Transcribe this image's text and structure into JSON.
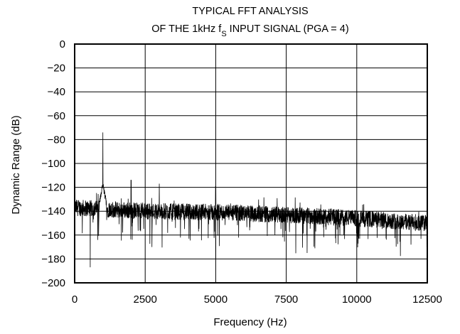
{
  "chart_data": {
    "type": "line",
    "title_line1": "TYPICAL FFT ANALYSIS",
    "title_line2_pre": "OF THE 1kHz f",
    "title_line2_sub": "S",
    "title_line2_post": " INPUT SIGNAL (PGA = 4)",
    "xlabel": "Frequency (Hz)",
    "ylabel": "Dynamic Range (dB)",
    "xlim": [
      0,
      12500
    ],
    "ylim": [
      -200,
      0
    ],
    "x_ticks": [
      0,
      2500,
      5000,
      7500,
      10000,
      12500
    ],
    "y_ticks": [
      0,
      -20,
      -40,
      -60,
      -80,
      -100,
      -120,
      -140,
      -160,
      -180,
      -200
    ],
    "x_tick_labels": [
      "0",
      "2500",
      "5000",
      "7500",
      "10000",
      "12500"
    ],
    "y_tick_labels": [
      "0",
      "−20",
      "−40",
      "−60",
      "−80",
      "−100",
      "−120",
      "−140",
      "−160",
      "−180",
      "−200"
    ],
    "grid": true,
    "line_color": "#000000",
    "noise_floor": {
      "x": [
        0,
        2500,
        5000,
        7500,
        10000,
        12500
      ],
      "mean_db": [
        -137,
        -140,
        -141,
        -143,
        -146,
        -150
      ]
    },
    "peaks": [
      {
        "x": 1000,
        "y": -74
      },
      {
        "x": 2000,
        "y": -114
      },
      {
        "x": 3000,
        "y": -117
      },
      {
        "x": 5000,
        "y": -119
      }
    ],
    "dips": [
      {
        "x": 550,
        "y": -187
      },
      {
        "x": 5000,
        "y": -180
      }
    ]
  }
}
